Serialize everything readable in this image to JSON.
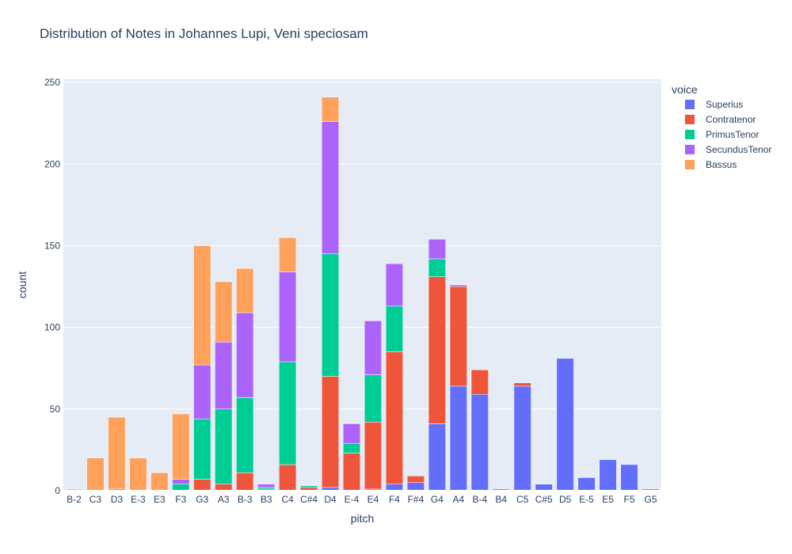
{
  "chart_data": {
    "type": "bar",
    "stacked": true,
    "title": "Distribution of Notes in Johannes Lupi, Veni speciosam",
    "xlabel": "pitch",
    "ylabel": "count",
    "ylim": [
      0,
      252
    ],
    "yticks": [
      0,
      50,
      100,
      150,
      200,
      250
    ],
    "grid": true,
    "legend_title": "voice",
    "legend_position": "right",
    "categories": [
      "B-2",
      "C3",
      "D3",
      "E-3",
      "E3",
      "F3",
      "G3",
      "A3",
      "B-3",
      "B3",
      "C4",
      "C#4",
      "D4",
      "E-4",
      "E4",
      "F4",
      "F#4",
      "G4",
      "A4",
      "B-4",
      "B4",
      "C5",
      "C#5",
      "D5",
      "E-5",
      "E5",
      "F5",
      "G5"
    ],
    "series": [
      {
        "name": "Superius",
        "color": "#636efa",
        "values": [
          0,
          0,
          0,
          0,
          0,
          0,
          0,
          0,
          0,
          0,
          0,
          0,
          2,
          0,
          1,
          4,
          5,
          41,
          64,
          59,
          1,
          64,
          4,
          81,
          8,
          19,
          16,
          1
        ]
      },
      {
        "name": "Contratenor",
        "color": "#ef553b",
        "values": [
          0,
          0,
          0,
          0,
          0,
          0,
          7,
          4,
          11,
          1,
          16,
          2,
          68,
          23,
          41,
          81,
          4,
          90,
          61,
          15,
          0,
          2,
          0,
          0,
          0,
          0,
          0,
          0
        ]
      },
      {
        "name": "PrimusTenor",
        "color": "#00cc96",
        "values": [
          0,
          0,
          1,
          0,
          0,
          4,
          37,
          46,
          46,
          1,
          63,
          1,
          75,
          6,
          29,
          28,
          0,
          11,
          0,
          0,
          0,
          0,
          0,
          0,
          0,
          0,
          0,
          0
        ]
      },
      {
        "name": "SecundusTenor",
        "color": "#ab63fa",
        "values": [
          0,
          0,
          0,
          0,
          0,
          3,
          33,
          41,
          52,
          2,
          55,
          0,
          81,
          12,
          33,
          26,
          0,
          12,
          1,
          0,
          0,
          0,
          0,
          0,
          0,
          0,
          0,
          0
        ]
      },
      {
        "name": "Bassus",
        "color": "#ffa15a",
        "values": [
          1,
          20,
          44,
          20,
          11,
          40,
          73,
          37,
          27,
          0,
          21,
          0,
          15,
          0,
          0,
          0,
          0,
          0,
          0,
          0,
          0,
          0,
          0,
          0,
          0,
          0,
          0,
          0
        ]
      }
    ]
  }
}
